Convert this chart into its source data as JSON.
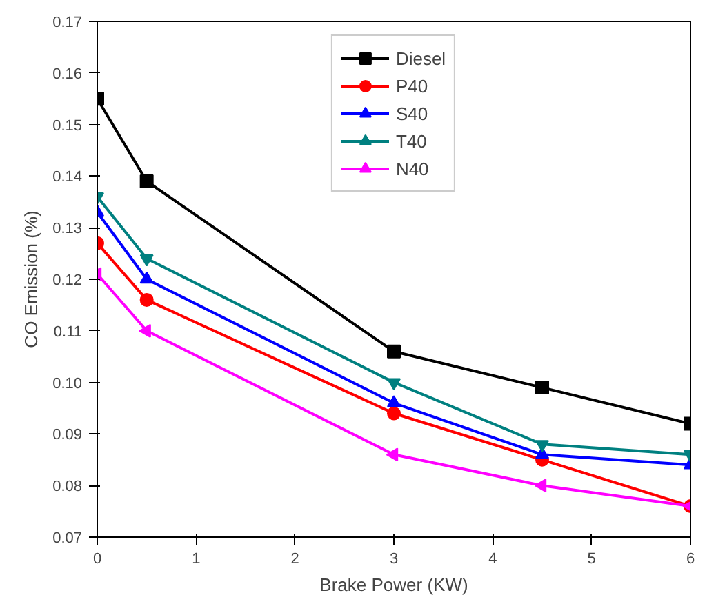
{
  "chart_data": {
    "type": "line",
    "xlabel": "Brake Power (KW)",
    "ylabel": "CO Emission (%)",
    "x": [
      0,
      0.5,
      3,
      4.5,
      6
    ],
    "series": [
      {
        "name": "Diesel",
        "color": "#000000",
        "marker": "square",
        "values": [
          0.155,
          0.139,
          0.106,
          0.099,
          0.092
        ]
      },
      {
        "name": "P40",
        "color": "#ff0000",
        "marker": "circle",
        "values": [
          0.127,
          0.116,
          0.094,
          0.085,
          0.076
        ]
      },
      {
        "name": "S40",
        "color": "#0000ff",
        "marker": "triangle",
        "values": [
          0.133,
          0.12,
          0.096,
          0.086,
          0.084
        ]
      },
      {
        "name": "T40",
        "color": "#008080",
        "marker": "triangle",
        "values": [
          0.136,
          0.124,
          0.1,
          0.088,
          0.086
        ]
      },
      {
        "name": "N40",
        "color": "#ff00ff",
        "marker": "triangle",
        "values": [
          0.121,
          0.11,
          0.086,
          0.08,
          0.076
        ]
      }
    ],
    "xlim": [
      0,
      6
    ],
    "ylim": [
      0.07,
      0.17
    ],
    "xticks": [
      0,
      1,
      2,
      3,
      4,
      5,
      6
    ],
    "yticks": [
      {
        "value": 0.07,
        "label": "0.07"
      },
      {
        "value": 0.08,
        "label": "0.08"
      },
      {
        "value": 0.09,
        "label": "0.09"
      },
      {
        "value": 0.1,
        "label": "0.10"
      },
      {
        "value": 0.11,
        "label": "0.11"
      },
      {
        "value": 0.12,
        "label": "0.12"
      },
      {
        "value": 0.13,
        "label": "0.13"
      },
      {
        "value": 0.14,
        "label": "0.14"
      },
      {
        "value": 0.15,
        "label": "0.15"
      },
      {
        "value": 0.16,
        "label": "0.16"
      },
      {
        "value": 0.17,
        "label": "0.17"
      }
    ],
    "grid": false,
    "legend": "top",
    "line_style": "solid"
  }
}
